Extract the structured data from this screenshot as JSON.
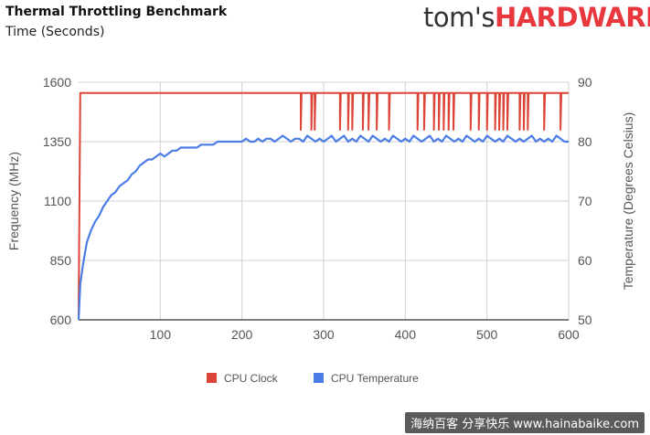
{
  "header": {
    "title": "Thermal Throttling Benchmark",
    "subtitle": "Time (Seconds)",
    "logo_part1": "tom's",
    "logo_part2": "HARDWARE"
  },
  "watermark": "海纳百客 分享快乐 www.hainabaike.com",
  "colors": {
    "clock": "#db4437",
    "temp": "#4a7de6",
    "grid": "#d0d0d0",
    "axis": "#333333",
    "text": "#555555"
  },
  "chart_data": {
    "type": "line",
    "title": "Thermal Throttling Benchmark",
    "xlabel": "",
    "xlim": [
      0,
      600
    ],
    "xticks": [
      100,
      200,
      300,
      400,
      500,
      600
    ],
    "y_left": {
      "label": "Frequency (MHz)",
      "lim": [
        600,
        1600
      ],
      "ticks": [
        600,
        850,
        1100,
        1350,
        1600
      ]
    },
    "y_right": {
      "label": "Temperature (Degrees Celsius)",
      "lim": [
        50,
        90
      ],
      "ticks": [
        50,
        60,
        70,
        80,
        90
      ]
    },
    "grid": true,
    "legend_position": "bottom",
    "series": [
      {
        "name": "CPU Clock",
        "axis": "left",
        "points": [
          [
            0,
            620
          ],
          [
            2,
            1555
          ],
          [
            272,
            1555
          ],
          [
            272,
            1400
          ],
          [
            273,
            1555
          ],
          [
            285,
            1555
          ],
          [
            285,
            1400
          ],
          [
            286,
            1555
          ],
          [
            289,
            1555
          ],
          [
            289,
            1400
          ],
          [
            290,
            1555
          ],
          [
            320,
            1555
          ],
          [
            320,
            1400
          ],
          [
            321,
            1555
          ],
          [
            330,
            1555
          ],
          [
            330,
            1400
          ],
          [
            331,
            1555
          ],
          [
            335,
            1555
          ],
          [
            335,
            1400
          ],
          [
            336,
            1555
          ],
          [
            348,
            1555
          ],
          [
            348,
            1400
          ],
          [
            349,
            1555
          ],
          [
            355,
            1555
          ],
          [
            355,
            1400
          ],
          [
            356,
            1555
          ],
          [
            365,
            1555
          ],
          [
            365,
            1400
          ],
          [
            366,
            1555
          ],
          [
            380,
            1555
          ],
          [
            380,
            1400
          ],
          [
            381,
            1555
          ],
          [
            415,
            1555
          ],
          [
            415,
            1400
          ],
          [
            416,
            1555
          ],
          [
            423,
            1555
          ],
          [
            423,
            1400
          ],
          [
            424,
            1555
          ],
          [
            435,
            1555
          ],
          [
            435,
            1400
          ],
          [
            436,
            1555
          ],
          [
            441,
            1555
          ],
          [
            441,
            1400
          ],
          [
            442,
            1555
          ],
          [
            447,
            1555
          ],
          [
            447,
            1400
          ],
          [
            448,
            1555
          ],
          [
            453,
            1555
          ],
          [
            453,
            1400
          ],
          [
            454,
            1555
          ],
          [
            459,
            1555
          ],
          [
            459,
            1400
          ],
          [
            460,
            1555
          ],
          [
            480,
            1555
          ],
          [
            480,
            1400
          ],
          [
            481,
            1555
          ],
          [
            490,
            1555
          ],
          [
            490,
            1400
          ],
          [
            491,
            1555
          ],
          [
            500,
            1555
          ],
          [
            500,
            1400
          ],
          [
            501,
            1555
          ],
          [
            510,
            1555
          ],
          [
            510,
            1400
          ],
          [
            511,
            1555
          ],
          [
            515,
            1555
          ],
          [
            515,
            1400
          ],
          [
            516,
            1555
          ],
          [
            520,
            1555
          ],
          [
            520,
            1400
          ],
          [
            521,
            1555
          ],
          [
            525,
            1555
          ],
          [
            525,
            1400
          ],
          [
            526,
            1555
          ],
          [
            540,
            1555
          ],
          [
            540,
            1400
          ],
          [
            541,
            1555
          ],
          [
            545,
            1555
          ],
          [
            545,
            1400
          ],
          [
            546,
            1555
          ],
          [
            550,
            1555
          ],
          [
            550,
            1400
          ],
          [
            551,
            1555
          ],
          [
            570,
            1555
          ],
          [
            570,
            1400
          ],
          [
            571,
            1555
          ],
          [
            590,
            1555
          ],
          [
            590,
            1400
          ],
          [
            591,
            1555
          ],
          [
            600,
            1555
          ]
        ]
      },
      {
        "name": "CPU Temperature",
        "axis": "right",
        "points": [
          [
            0,
            50
          ],
          [
            2,
            56
          ],
          [
            5,
            59
          ],
          [
            10,
            63
          ],
          [
            15,
            65
          ],
          [
            20,
            66.5
          ],
          [
            25,
            67.5
          ],
          [
            30,
            69
          ],
          [
            35,
            70
          ],
          [
            40,
            71
          ],
          [
            45,
            71.5
          ],
          [
            50,
            72.5
          ],
          [
            55,
            73
          ],
          [
            60,
            73.5
          ],
          [
            65,
            74.5
          ],
          [
            70,
            75
          ],
          [
            75,
            76
          ],
          [
            80,
            76.5
          ],
          [
            85,
            77
          ],
          [
            90,
            77
          ],
          [
            95,
            77.5
          ],
          [
            100,
            78
          ],
          [
            105,
            77.5
          ],
          [
            110,
            78
          ],
          [
            115,
            78.5
          ],
          [
            120,
            78.5
          ],
          [
            125,
            79
          ],
          [
            130,
            79
          ],
          [
            135,
            79
          ],
          [
            140,
            79
          ],
          [
            145,
            79
          ],
          [
            150,
            79.5
          ],
          [
            155,
            79.5
          ],
          [
            160,
            79.5
          ],
          [
            165,
            79.5
          ],
          [
            170,
            80
          ],
          [
            175,
            80
          ],
          [
            180,
            80
          ],
          [
            185,
            80
          ],
          [
            190,
            80
          ],
          [
            195,
            80
          ],
          [
            200,
            80
          ],
          [
            205,
            80.5
          ],
          [
            210,
            80
          ],
          [
            215,
            80
          ],
          [
            220,
            80.5
          ],
          [
            225,
            80
          ],
          [
            230,
            80.5
          ],
          [
            235,
            80.5
          ],
          [
            240,
            80
          ],
          [
            245,
            80.5
          ],
          [
            250,
            81
          ],
          [
            255,
            80.5
          ],
          [
            260,
            80
          ],
          [
            265,
            80.5
          ],
          [
            270,
            80.5
          ],
          [
            275,
            80
          ],
          [
            280,
            81
          ],
          [
            285,
            80.5
          ],
          [
            290,
            80
          ],
          [
            295,
            80.5
          ],
          [
            300,
            80
          ],
          [
            305,
            80.5
          ],
          [
            310,
            81
          ],
          [
            315,
            80
          ],
          [
            320,
            80.5
          ],
          [
            325,
            81
          ],
          [
            330,
            80
          ],
          [
            335,
            80.5
          ],
          [
            340,
            80
          ],
          [
            345,
            81
          ],
          [
            350,
            80.5
          ],
          [
            355,
            80
          ],
          [
            360,
            81
          ],
          [
            365,
            80.5
          ],
          [
            370,
            80
          ],
          [
            375,
            80.5
          ],
          [
            380,
            80
          ],
          [
            385,
            81
          ],
          [
            390,
            80.5
          ],
          [
            395,
            80
          ],
          [
            400,
            80.5
          ],
          [
            405,
            80
          ],
          [
            410,
            81
          ],
          [
            415,
            80.5
          ],
          [
            420,
            80
          ],
          [
            425,
            80.5
          ],
          [
            430,
            81
          ],
          [
            435,
            80
          ],
          [
            440,
            80.5
          ],
          [
            445,
            80
          ],
          [
            450,
            81
          ],
          [
            455,
            80.5
          ],
          [
            460,
            80
          ],
          [
            465,
            80.5
          ],
          [
            470,
            80
          ],
          [
            475,
            81
          ],
          [
            480,
            80.5
          ],
          [
            485,
            80
          ],
          [
            490,
            80.5
          ],
          [
            495,
            80
          ],
          [
            500,
            81
          ],
          [
            505,
            80.5
          ],
          [
            510,
            80
          ],
          [
            515,
            80.5
          ],
          [
            520,
            80
          ],
          [
            525,
            81
          ],
          [
            530,
            80.5
          ],
          [
            535,
            80
          ],
          [
            540,
            80.5
          ],
          [
            545,
            80
          ],
          [
            550,
            80.5
          ],
          [
            555,
            81
          ],
          [
            560,
            80
          ],
          [
            565,
            80.5
          ],
          [
            570,
            80
          ],
          [
            575,
            80.5
          ],
          [
            580,
            80
          ],
          [
            585,
            81
          ],
          [
            590,
            80.5
          ],
          [
            595,
            80
          ],
          [
            600,
            80
          ]
        ]
      }
    ]
  }
}
